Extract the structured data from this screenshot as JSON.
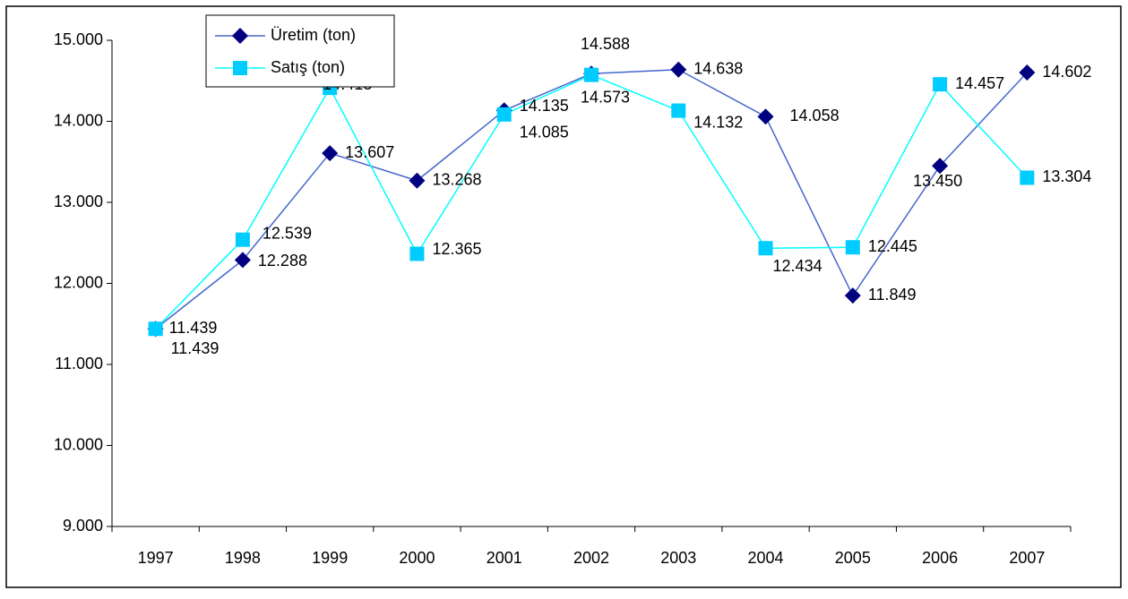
{
  "chart_data": {
    "type": "line",
    "categories": [
      "1997",
      "1998",
      "1999",
      "2000",
      "2001",
      "2002",
      "2003",
      "2004",
      "2005",
      "2006",
      "2007"
    ],
    "series": [
      {
        "name": "Üretim (ton)",
        "color": "#000080",
        "line_color": "#4466cc",
        "values": [
          11439,
          12288,
          13607,
          13268,
          14135,
          14588,
          14638,
          14058,
          11849,
          13450,
          14602
        ],
        "value_labels": [
          "11.439",
          "12.288",
          "13.607",
          "13.268",
          "14.135",
          "14.588",
          "14.638",
          "14.058",
          "11.849",
          "13.450",
          "14.602"
        ]
      },
      {
        "name": "Satış (ton)",
        "color": "#00ccff",
        "line_color": "#00ffff",
        "values": [
          11439,
          12539,
          14413,
          12365,
          14085,
          14573,
          14132,
          12434,
          12445,
          14457,
          13304
        ],
        "value_labels": [
          "11.439",
          "12.539",
          "14.413",
          "12.365",
          "14.085",
          "14.573",
          "14.132",
          "12.434",
          "12.445",
          "14.457",
          "13.304"
        ]
      }
    ],
    "ylim": [
      9000,
      15000
    ],
    "yticks": [
      {
        "value": 9000,
        "label": "9.000"
      },
      {
        "value": 10000,
        "label": "10.000"
      },
      {
        "value": 11000,
        "label": "11.000"
      },
      {
        "value": 12000,
        "label": "12.000"
      },
      {
        "value": 13000,
        "label": "13.000"
      },
      {
        "value": 14000,
        "label": "14.000"
      },
      {
        "value": 15000,
        "label": "15.000"
      }
    ],
    "legend": "top-left"
  }
}
